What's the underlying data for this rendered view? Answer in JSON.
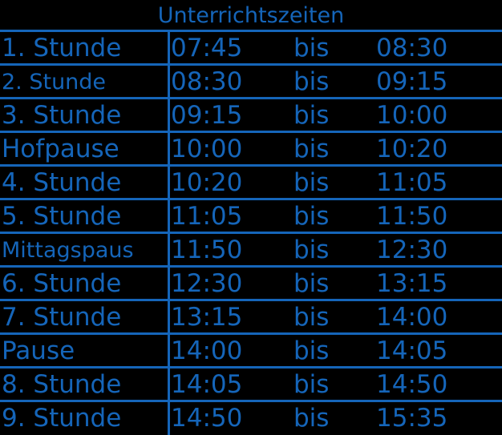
{
  "title": "Unterrichtszeiten",
  "rows": [
    {
      "label": "1. Stunde",
      "from": "07:45",
      "bis": "bis",
      "to": "08:30"
    },
    {
      "label": "2. Stunde",
      "from": "08:30",
      "bis": "bis",
      "to": "09:15"
    },
    {
      "label": "3. Stunde",
      "from": "09:15",
      "bis": "bis",
      "to": "10:00"
    },
    {
      "label": "Hofpause",
      "from": "10:00",
      "bis": "bis",
      "to": "10:20"
    },
    {
      "label": "4. Stunde",
      "from": "10:20",
      "bis": "bis",
      "to": "11:05"
    },
    {
      "label": "5. Stunde",
      "from": "11:05",
      "bis": "bis",
      "to": "11:50"
    },
    {
      "label": "Mittagspaus",
      "from": "11:50",
      "bis": "bis",
      "to": "12:30"
    },
    {
      "label": "6. Stunde",
      "from": "12:30",
      "bis": "bis",
      "to": "13:15"
    },
    {
      "label": "7. Stunde",
      "from": "13:15",
      "bis": "bis",
      "to": "14:00"
    },
    {
      "label": "Pause",
      "from": "14:00",
      "bis": "bis",
      "to": "14:05"
    },
    {
      "label": "8. Stunde",
      "from": "14:05",
      "bis": "bis",
      "to": "14:50"
    },
    {
      "label": "9. Stunde",
      "from": "14:50",
      "bis": "bis",
      "to": "15:35"
    }
  ],
  "colors": {
    "text": "#1565b9",
    "background": "#000000"
  }
}
